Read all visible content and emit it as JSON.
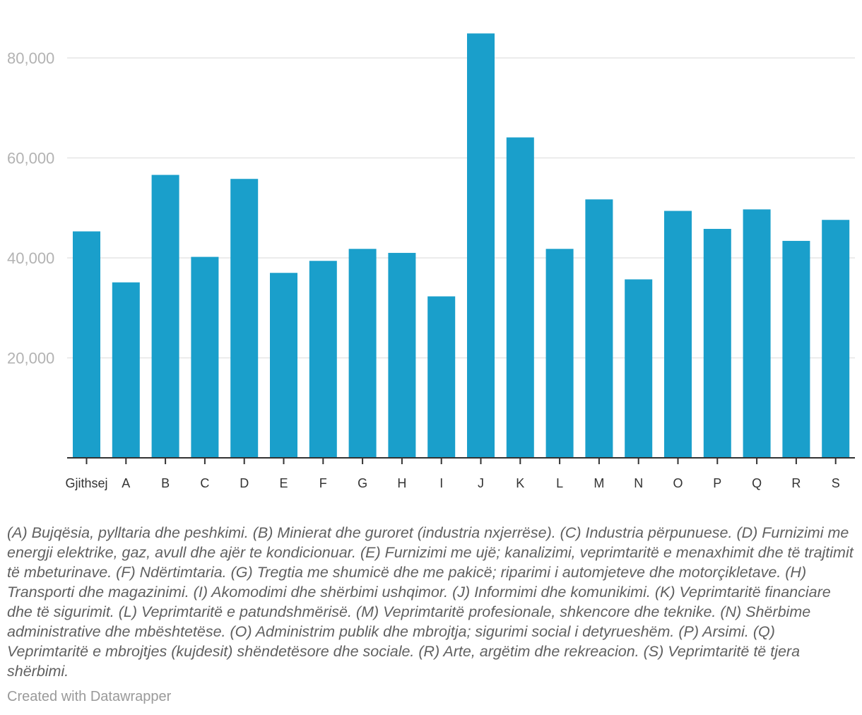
{
  "chart_data": {
    "type": "bar",
    "categories": [
      "Gjithsej",
      "A",
      "B",
      "C",
      "D",
      "E",
      "F",
      "G",
      "H",
      "I",
      "J",
      "K",
      "L",
      "M",
      "N",
      "O",
      "P",
      "Q",
      "R",
      "S"
    ],
    "values": [
      45300,
      35100,
      56600,
      40200,
      55800,
      37000,
      39400,
      41800,
      41000,
      32300,
      84900,
      64100,
      41800,
      51700,
      35700,
      49400,
      45800,
      49700,
      43400,
      47600
    ],
    "yticks": [
      20000,
      40000,
      60000,
      80000
    ],
    "ytick_labels": [
      "20,000",
      "40,000",
      "60,000",
      "80,000"
    ],
    "ylim": [
      0,
      90000
    ],
    "grid": true,
    "bar_color": "#1a9fcb"
  },
  "notes": "(A) Bujqësia, pylltaria dhe peshkimi. (B) Minierat dhe guroret (industria nxjerrëse). (C) Industria përpunuese. (D) Furnizimi me energji elektrike, gaz, avull dhe ajër te kondicionuar. (E) Furnizimi me ujë; kanalizimi, veprimtaritë e menaxhimit dhe të trajtimit të mbeturinave. (F) Ndërtimtaria. (G) Tregtia me shumicë dhe me pakicë; riparimi i automjeteve dhe motorçikletave. (H) Transporti dhe magazinimi. (I) Akomodimi dhe shërbimi ushqimor. (J) Informimi dhe komunikimi. (K) Veprimtaritë financiare dhe të sigurimit. (L) Veprimtaritë e patundshmërisë. (M) Veprimtaritë profesionale, shkencore dhe teknike. (N) Shërbime administrative dhe mbështetëse. (O) Administrim publik dhe mbrojtja; sigurimi social i detyrueshëm. (P) Arsimi. (Q) Veprimtaritë e mbrojtjes (kujdesit) shëndetësore dhe sociale. (R) Arte, argëtim dhe rekreacion. (S) Veprimtaritë të tjera shërbimi.",
  "credit": "Created with Datawrapper"
}
